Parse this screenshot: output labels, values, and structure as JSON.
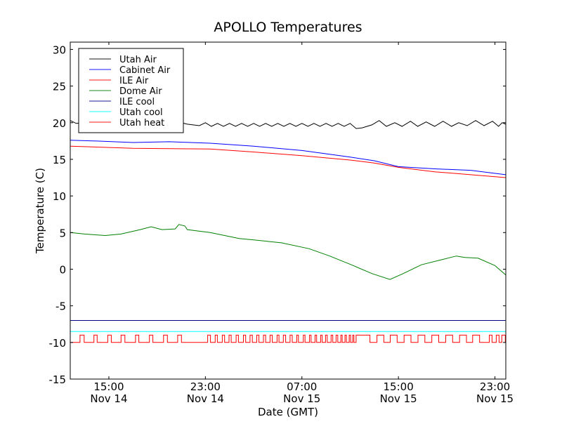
{
  "chart_data": {
    "type": "line",
    "title": "APOLLO Temperatures",
    "xlabel": "Date (GMT)",
    "ylabel": "Temperature (C)",
    "x_units": "hours since Nov 14 00:00 GMT",
    "xlim": [
      11.8,
      47.9
    ],
    "ylim": [
      -15,
      31
    ],
    "grid": false,
    "legend_position": "top-left",
    "yticks": [
      -15,
      -10,
      -5,
      0,
      5,
      10,
      15,
      20,
      25,
      30
    ],
    "xticks": [
      {
        "x": 15,
        "time": "15:00",
        "date": "Nov 14"
      },
      {
        "x": 23,
        "time": "23:00",
        "date": "Nov 14"
      },
      {
        "x": 31,
        "time": "07:00",
        "date": "Nov 15"
      },
      {
        "x": 39,
        "time": "15:00",
        "date": "Nov 15"
      },
      {
        "x": 47,
        "time": "23:00",
        "date": "Nov 15"
      }
    ],
    "series": [
      {
        "name": "Utah Air",
        "color": "#000000",
        "points": [
          [
            11.8,
            20.3
          ],
          [
            12.3,
            19.9
          ],
          [
            13,
            20.0
          ],
          [
            14,
            19.8
          ],
          [
            15,
            20.1
          ],
          [
            15.5,
            19.7
          ],
          [
            16.5,
            20.0
          ],
          [
            17.5,
            19.8
          ],
          [
            18.5,
            20.1
          ],
          [
            19.5,
            19.8
          ],
          [
            20.5,
            20.2
          ],
          [
            21.5,
            19.8
          ],
          [
            22.5,
            19.6
          ],
          [
            23,
            20.0
          ],
          [
            23.5,
            19.5
          ],
          [
            24,
            19.9
          ],
          [
            24.5,
            19.5
          ],
          [
            25,
            19.9
          ],
          [
            25.5,
            19.5
          ],
          [
            26,
            19.9
          ],
          [
            26.5,
            19.5
          ],
          [
            27,
            19.9
          ],
          [
            27.5,
            19.5
          ],
          [
            28,
            19.9
          ],
          [
            28.5,
            19.5
          ],
          [
            29,
            19.9
          ],
          [
            29.5,
            19.5
          ],
          [
            30,
            19.9
          ],
          [
            30.5,
            19.5
          ],
          [
            31,
            19.9
          ],
          [
            31.5,
            19.5
          ],
          [
            32,
            19.9
          ],
          [
            32.5,
            19.5
          ],
          [
            33,
            19.9
          ],
          [
            33.5,
            19.5
          ],
          [
            34,
            19.9
          ],
          [
            34.5,
            19.5
          ],
          [
            35,
            19.9
          ],
          [
            35.5,
            19.2
          ],
          [
            36,
            19.3
          ],
          [
            36.8,
            19.7
          ],
          [
            37.4,
            20.3
          ],
          [
            38,
            19.5
          ],
          [
            38.7,
            20.0
          ],
          [
            39.3,
            19.5
          ],
          [
            40,
            20.2
          ],
          [
            40.6,
            19.5
          ],
          [
            41.3,
            20.1
          ],
          [
            42,
            19.5
          ],
          [
            42.7,
            20.2
          ],
          [
            43.4,
            19.5
          ],
          [
            44,
            20.0
          ],
          [
            44.7,
            19.6
          ],
          [
            45.4,
            20.3
          ],
          [
            46.1,
            19.6
          ],
          [
            46.8,
            20.2
          ],
          [
            47.3,
            19.5
          ],
          [
            47.6,
            20.0
          ],
          [
            47.9,
            19.8
          ]
        ]
      },
      {
        "name": "Cabinet Air",
        "color": "#0000ff",
        "points": [
          [
            11.8,
            17.6
          ],
          [
            14,
            17.5
          ],
          [
            17,
            17.3
          ],
          [
            20,
            17.4
          ],
          [
            23.4,
            17.2
          ],
          [
            27,
            16.8
          ],
          [
            31,
            16.2
          ],
          [
            35,
            15.3
          ],
          [
            37,
            14.8
          ],
          [
            39,
            14.0
          ],
          [
            42,
            13.7
          ],
          [
            45,
            13.5
          ],
          [
            47.9,
            12.9
          ]
        ]
      },
      {
        "name": "ILE Air",
        "color": "#ff0000",
        "points": [
          [
            11.8,
            16.8
          ],
          [
            17,
            16.5
          ],
          [
            23.4,
            16.4
          ],
          [
            27,
            16.0
          ],
          [
            31,
            15.5
          ],
          [
            35,
            14.9
          ],
          [
            37,
            14.5
          ],
          [
            39,
            13.9
          ],
          [
            42,
            13.3
          ],
          [
            45,
            12.9
          ],
          [
            47.9,
            12.5
          ]
        ]
      },
      {
        "name": "Dome Air",
        "color": "#008000",
        "points": [
          [
            11.8,
            5.0
          ],
          [
            13,
            4.8
          ],
          [
            14.7,
            4.6
          ],
          [
            16,
            4.8
          ],
          [
            17.6,
            5.4
          ],
          [
            18.5,
            5.8
          ],
          [
            19.4,
            5.4
          ],
          [
            20.5,
            5.5
          ],
          [
            20.8,
            6.1
          ],
          [
            21.3,
            5.9
          ],
          [
            21.5,
            5.4
          ],
          [
            23.4,
            5.0
          ],
          [
            25.8,
            4.2
          ],
          [
            27,
            4.0
          ],
          [
            29.3,
            3.6
          ],
          [
            31.6,
            2.8
          ],
          [
            33.3,
            1.8
          ],
          [
            35.1,
            0.6
          ],
          [
            36.8,
            -0.6
          ],
          [
            38.3,
            -1.4
          ],
          [
            39.4,
            -0.6
          ],
          [
            40.9,
            0.6
          ],
          [
            42.6,
            1.3
          ],
          [
            43.8,
            1.8
          ],
          [
            44.5,
            1.6
          ],
          [
            45.6,
            1.5
          ],
          [
            47,
            0.5
          ],
          [
            47.9,
            -0.8
          ]
        ]
      },
      {
        "name": "ILE cool",
        "color": "#000080",
        "points": [
          [
            11.8,
            -7.0
          ],
          [
            47.9,
            -7.0
          ]
        ]
      },
      {
        "name": "Utah cool",
        "color": "#00ffff",
        "points": [
          [
            11.8,
            -8.5
          ],
          [
            47.9,
            -8.5
          ]
        ]
      },
      {
        "name": "Utah heat",
        "color": "#ff0000",
        "low": -10,
        "high": -9,
        "on_intervals": [
          [
            12.61,
            12.95
          ],
          [
            13.76,
            14.03
          ],
          [
            14.91,
            15.2
          ],
          [
            16.01,
            16.33
          ],
          [
            17.21,
            17.48
          ],
          [
            18.36,
            18.65
          ],
          [
            19.53,
            19.85
          ],
          [
            20.7,
            21.02
          ],
          [
            23.19,
            23.42
          ],
          [
            23.81,
            23.99
          ],
          [
            24.4,
            24.59
          ],
          [
            24.96,
            25.14
          ],
          [
            25.55,
            25.74
          ],
          [
            26.15,
            26.34
          ],
          [
            26.7,
            26.89
          ],
          [
            27.26,
            27.44
          ],
          [
            27.81,
            27.99
          ],
          [
            28.36,
            28.54
          ],
          [
            28.94,
            29.1
          ],
          [
            29.46,
            29.65
          ],
          [
            30.02,
            30.2
          ],
          [
            30.57,
            30.71
          ],
          [
            31.12,
            31.26
          ],
          [
            31.63,
            31.76
          ],
          [
            32.09,
            32.22
          ],
          [
            32.55,
            32.68
          ],
          [
            32.96,
            33.1
          ],
          [
            33.42,
            33.56
          ],
          [
            33.83,
            33.97
          ],
          [
            34.23,
            34.34
          ],
          [
            34.57,
            34.69
          ],
          [
            34.92,
            35.03
          ],
          [
            35.21,
            35.31
          ],
          [
            35.49,
            36.64
          ],
          [
            37.22,
            37.79
          ],
          [
            38.32,
            38.89
          ],
          [
            39.47,
            40.04
          ],
          [
            40.62,
            41.19
          ],
          [
            41.77,
            42.34
          ],
          [
            42.92,
            43.49
          ],
          [
            44.07,
            44.64
          ],
          [
            45.15,
            45.73
          ],
          [
            46.53,
            46.76
          ],
          [
            47.11,
            47.34
          ],
          [
            47.57,
            47.86
          ]
        ]
      }
    ]
  }
}
